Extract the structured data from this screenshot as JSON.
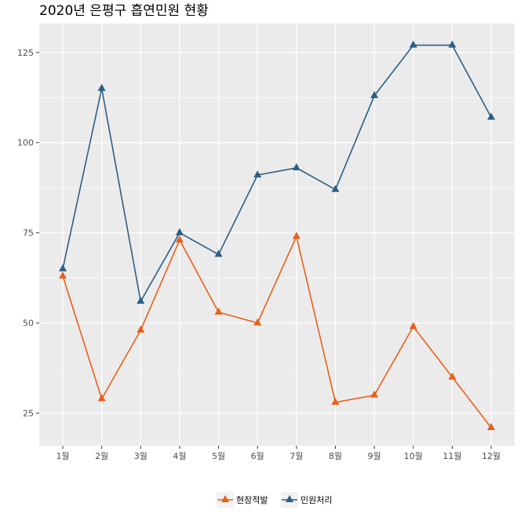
{
  "chart_data": {
    "type": "line",
    "title": "2020년 은평구 흡연민원 현황",
    "xlabel": "",
    "ylabel": "",
    "categories": [
      "1월",
      "2월",
      "3월",
      "4월",
      "5월",
      "6월",
      "7월",
      "8월",
      "9월",
      "10월",
      "11월",
      "12월"
    ],
    "series": [
      {
        "name": "현장적발",
        "color": "#e8601c",
        "marker": "triangle",
        "values": [
          63,
          29,
          48,
          73,
          53,
          50,
          74,
          28,
          30,
          49,
          35,
          21
        ]
      },
      {
        "name": "민원처리",
        "color": "#2c5f86",
        "marker": "triangle",
        "values": [
          65,
          115,
          56,
          75,
          69,
          91,
          93,
          87,
          113,
          127,
          127,
          107
        ]
      }
    ],
    "ylim": [
      16,
      133
    ],
    "yticks": [
      25,
      50,
      75,
      100,
      125
    ],
    "grid": true,
    "panel_background": "#ebebeb",
    "legend_position": "bottom"
  }
}
